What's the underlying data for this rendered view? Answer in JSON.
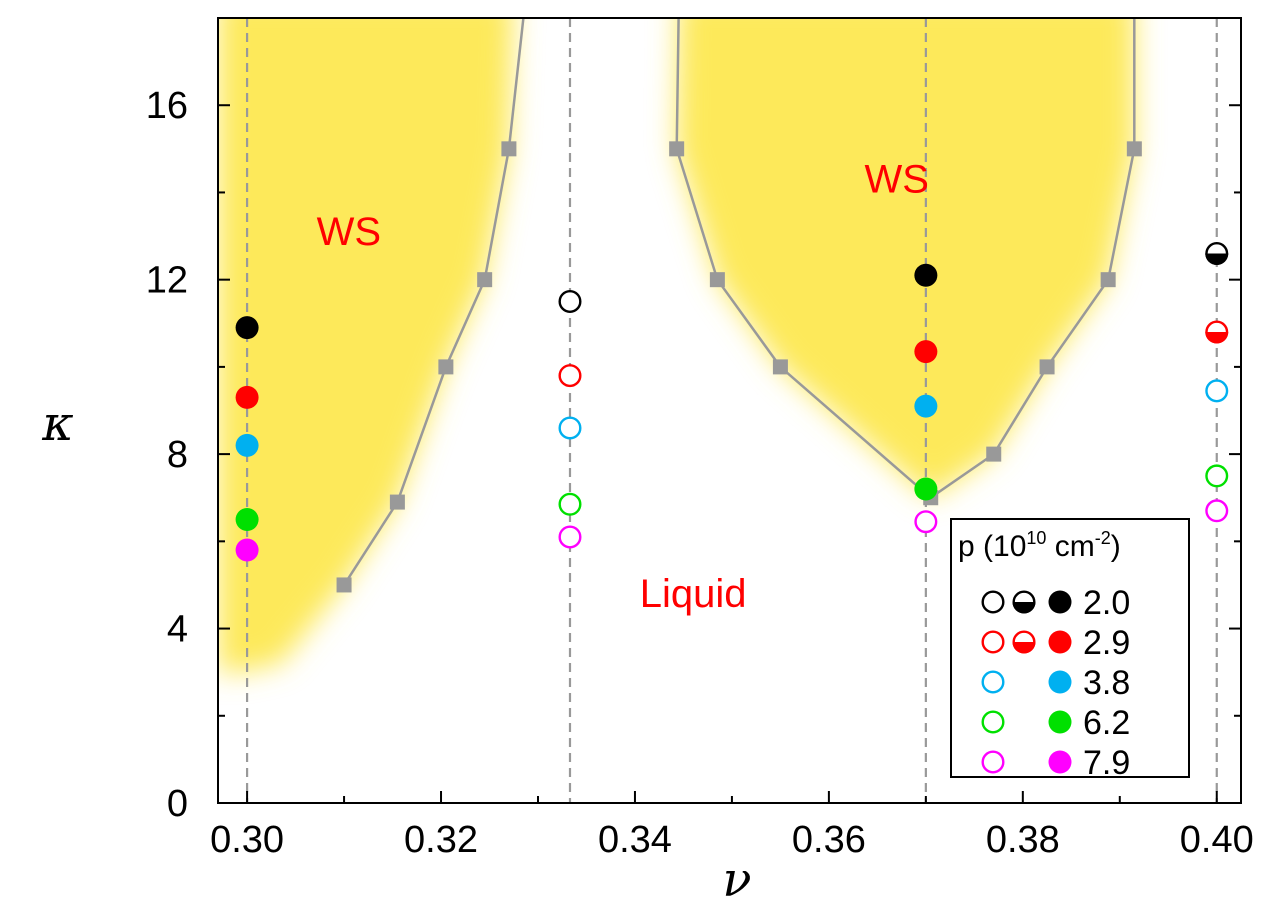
{
  "chart_data": {
    "type": "scatter",
    "title": "",
    "xlabel": "ν",
    "ylabel": "κ",
    "xlim": [
      0.297,
      0.4025
    ],
    "ylim": [
      0,
      18
    ],
    "x_ticks": [
      0.3,
      0.32,
      0.34,
      0.36,
      0.38,
      0.4
    ],
    "x_tick_labels": [
      "0.30",
      "0.32",
      "0.34",
      "0.36",
      "0.38",
      "0.40"
    ],
    "y_ticks": [
      0,
      4,
      8,
      12,
      16
    ],
    "y_tick_labels": [
      "0",
      "4",
      "8",
      "12",
      "16"
    ],
    "y_minor_ticks": [
      2,
      6,
      10,
      14
    ],
    "x_minor_ticks": [
      0.31,
      0.33,
      0.35,
      0.37,
      0.39
    ],
    "vertical_reference_lines": [
      0.3,
      0.3333,
      0.37,
      0.4
    ],
    "colors": {
      "boundary": "#999999",
      "reference": "#999999",
      "region_fill": "#fde95a",
      "region_label": "#ff0000"
    },
    "boundaries": [
      {
        "name": "left-boundary",
        "points": [
          [
            0.31,
            5.0
          ],
          [
            0.3155,
            6.9
          ],
          [
            0.3205,
            10.0
          ],
          [
            0.3245,
            12.0
          ],
          [
            0.327,
            15.0
          ],
          [
            0.3285,
            18.0
          ]
        ]
      },
      {
        "name": "right-boundary",
        "points": [
          [
            0.3445,
            18.0
          ],
          [
            0.3443,
            15.0
          ],
          [
            0.3485,
            12.0
          ],
          [
            0.355,
            10.0
          ],
          [
            0.3705,
            7.0
          ],
          [
            0.377,
            8.0
          ],
          [
            0.3825,
            10.0
          ],
          [
            0.3888,
            12.0
          ],
          [
            0.3915,
            15.0
          ],
          [
            0.3915,
            18.0
          ]
        ]
      }
    ],
    "boundary_markers": [
      [
        0.31,
        5.0
      ],
      [
        0.3155,
        6.9
      ],
      [
        0.3205,
        10.0
      ],
      [
        0.3245,
        12.0
      ],
      [
        0.327,
        15.0
      ],
      [
        0.3443,
        15.0
      ],
      [
        0.3485,
        12.0
      ],
      [
        0.355,
        10.0
      ],
      [
        0.3705,
        7.0
      ],
      [
        0.377,
        8.0
      ],
      [
        0.3825,
        10.0
      ],
      [
        0.3888,
        12.0
      ],
      [
        0.3915,
        15.0
      ]
    ],
    "regions": [
      {
        "label": "WS",
        "x": 0.3105,
        "y": 12.8,
        "color": "#ff0000"
      },
      {
        "label": "WS",
        "x": 0.367,
        "y": 14.0,
        "color": "#ff0000"
      },
      {
        "label": "Liquid",
        "x": 0.346,
        "y": 4.5,
        "color": "#ff0000"
      }
    ],
    "series": [
      {
        "name": "2.0",
        "color": "#000000",
        "points": [
          {
            "x": 0.3,
            "y": 10.9,
            "style": "filled"
          },
          {
            "x": 0.3333,
            "y": 11.5,
            "style": "open"
          },
          {
            "x": 0.37,
            "y": 12.1,
            "style": "filled"
          },
          {
            "x": 0.4,
            "y": 12.6,
            "style": "half"
          }
        ]
      },
      {
        "name": "2.9",
        "color": "#ff0000",
        "points": [
          {
            "x": 0.3,
            "y": 9.3,
            "style": "filled"
          },
          {
            "x": 0.3333,
            "y": 9.8,
            "style": "open"
          },
          {
            "x": 0.37,
            "y": 10.35,
            "style": "filled"
          },
          {
            "x": 0.4,
            "y": 10.8,
            "style": "half"
          }
        ]
      },
      {
        "name": "3.8",
        "color": "#00b0f0",
        "points": [
          {
            "x": 0.3,
            "y": 8.2,
            "style": "filled"
          },
          {
            "x": 0.3333,
            "y": 8.6,
            "style": "open"
          },
          {
            "x": 0.37,
            "y": 9.1,
            "style": "filled"
          },
          {
            "x": 0.4,
            "y": 9.45,
            "style": "open"
          }
        ]
      },
      {
        "name": "6.2",
        "color": "#00e000",
        "points": [
          {
            "x": 0.3,
            "y": 6.5,
            "style": "filled"
          },
          {
            "x": 0.3333,
            "y": 6.85,
            "style": "open"
          },
          {
            "x": 0.37,
            "y": 7.2,
            "style": "filled"
          },
          {
            "x": 0.4,
            "y": 7.5,
            "style": "open"
          }
        ]
      },
      {
        "name": "7.9",
        "color": "#ff00ff",
        "points": [
          {
            "x": 0.3,
            "y": 5.8,
            "style": "filled"
          },
          {
            "x": 0.3333,
            "y": 6.1,
            "style": "open"
          },
          {
            "x": 0.37,
            "y": 6.45,
            "style": "open"
          },
          {
            "x": 0.4,
            "y": 6.7,
            "style": "open"
          }
        ]
      }
    ],
    "legend": {
      "title_main": "p (10",
      "title_sup1": "10",
      "title_mid": " cm",
      "title_sup2": "-2",
      "title_end": ")",
      "placement": "bottom-right",
      "entries": [
        {
          "label": "2.0",
          "color": "#000000",
          "styles": [
            "open",
            "half",
            "filled"
          ]
        },
        {
          "label": "2.9",
          "color": "#ff0000",
          "styles": [
            "open",
            "half",
            "filled"
          ]
        },
        {
          "label": "3.8",
          "color": "#00b0f0",
          "styles": [
            "open",
            "filled"
          ]
        },
        {
          "label": "6.2",
          "color": "#00e000",
          "styles": [
            "open",
            "filled"
          ]
        },
        {
          "label": "7.9",
          "color": "#ff00ff",
          "styles": [
            "open",
            "filled"
          ]
        }
      ]
    }
  }
}
